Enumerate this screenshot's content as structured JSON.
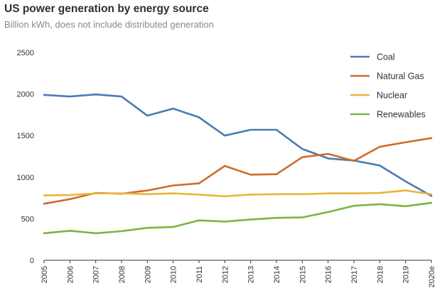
{
  "header": {
    "title": "US power generation by energy source",
    "subtitle": "Billion kWh, does not include distributed generation"
  },
  "chart_data": {
    "type": "line",
    "title": "US power generation by energy source",
    "subtitle": "Billion kWh, does not include distributed generation",
    "xlabel": "",
    "ylabel": "",
    "categories": [
      "2005",
      "2006",
      "2007",
      "2008",
      "2009",
      "2010",
      "2011",
      "2012",
      "2013",
      "2014",
      "2015",
      "2016",
      "2017",
      "2018",
      "2019",
      "2020e"
    ],
    "ylim": [
      0,
      2500
    ],
    "yticks": [
      0,
      500,
      1000,
      1500,
      2000,
      2500
    ],
    "grid": false,
    "legend_position": "top-right",
    "series": [
      {
        "name": "Coal",
        "color": "#4a7ab5",
        "values": [
          1990,
          1970,
          1995,
          1970,
          1740,
          1825,
          1720,
          1500,
          1570,
          1570,
          1340,
          1225,
          1200,
          1140,
          950,
          775
        ]
      },
      {
        "name": "Natural Gas",
        "color": "#d06b2a",
        "values": [
          680,
          735,
          810,
          800,
          840,
          900,
          925,
          1135,
          1030,
          1035,
          1240,
          1280,
          1195,
          1365,
          1420,
          1470
        ]
      },
      {
        "name": "Nuclear",
        "color": "#e8b53a",
        "values": [
          780,
          785,
          805,
          805,
          795,
          805,
          790,
          770,
          790,
          795,
          795,
          805,
          805,
          810,
          840,
          795
        ]
      },
      {
        "name": "Renewables",
        "color": "#7eb33f",
        "values": [
          325,
          355,
          325,
          350,
          390,
          400,
          480,
          465,
          490,
          510,
          515,
          580,
          655,
          675,
          650,
          690
        ]
      }
    ]
  }
}
